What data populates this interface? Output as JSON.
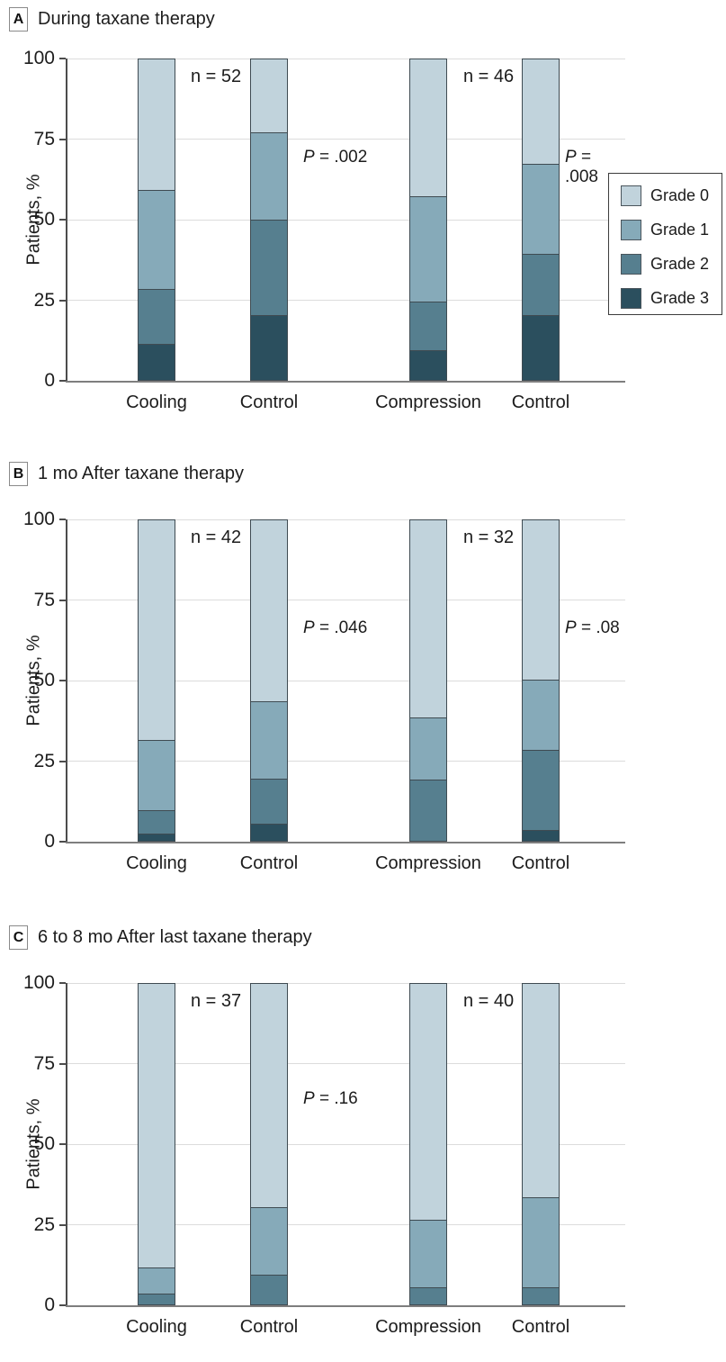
{
  "chart_data": [
    {
      "type": "bar",
      "stacked": true,
      "panel_letter": "A",
      "title": "During taxane therapy",
      "ylabel": "Patients, %",
      "ylim": [
        0,
        100
      ],
      "yticks": [
        0,
        25,
        50,
        75,
        100
      ],
      "grid": "horizontal",
      "legend": {
        "visible": true,
        "position": "right"
      },
      "categories": [
        "Cooling",
        "Control",
        "Compression",
        "Control"
      ],
      "series": [
        {
          "name": "Grade 0",
          "color": "#c1d3dc",
          "values": [
            41,
            23,
            43,
            33
          ]
        },
        {
          "name": "Grade 1",
          "color": "#86aab9",
          "values": [
            31,
            27,
            33,
            28
          ]
        },
        {
          "name": "Grade 2",
          "color": "#567f8f",
          "values": [
            17,
            30,
            15,
            19
          ]
        },
        {
          "name": "Grade 3",
          "color": "#2b4f5e",
          "values": [
            11,
            20,
            9,
            20
          ]
        }
      ],
      "annotations": {
        "n_left": "n = 52",
        "n_right": "n = 46",
        "p_left": "P = .002",
        "p_right": "P = .008"
      }
    },
    {
      "type": "bar",
      "stacked": true,
      "panel_letter": "B",
      "title": "1 mo After taxane therapy",
      "ylabel": "Patients, %",
      "ylim": [
        0,
        100
      ],
      "yticks": [
        0,
        25,
        50,
        75,
        100
      ],
      "grid": "horizontal",
      "legend": {
        "visible": false
      },
      "categories": [
        "Cooling",
        "Control",
        "Compression",
        "Control"
      ],
      "series": [
        {
          "name": "Grade 0",
          "color": "#c1d3dc",
          "values": [
            69,
            57,
            62,
            50
          ]
        },
        {
          "name": "Grade 1",
          "color": "#86aab9",
          "values": [
            22,
            24,
            19,
            22
          ]
        },
        {
          "name": "Grade 2",
          "color": "#567f8f",
          "values": [
            7,
            14,
            19,
            25
          ]
        },
        {
          "name": "Grade 3",
          "color": "#2b4f5e",
          "values": [
            2,
            5,
            0,
            3
          ]
        }
      ],
      "annotations": {
        "n_left": "n = 42",
        "n_right": "n = 32",
        "p_left": "P = .046",
        "p_right": "P = .08"
      }
    },
    {
      "type": "bar",
      "stacked": true,
      "panel_letter": "C",
      "title": "6 to 8 mo After last taxane therapy",
      "ylabel": "Patients, %",
      "ylim": [
        0,
        100
      ],
      "yticks": [
        0,
        25,
        50,
        75,
        100
      ],
      "grid": "horizontal",
      "legend": {
        "visible": false
      },
      "categories": [
        "Cooling",
        "Control",
        "Compression",
        "Control"
      ],
      "series": [
        {
          "name": "Grade 0",
          "color": "#c1d3dc",
          "values": [
            89,
            70,
            74,
            67
          ]
        },
        {
          "name": "Grade 1",
          "color": "#86aab9",
          "values": [
            8,
            21,
            21,
            28
          ]
        },
        {
          "name": "Grade 2",
          "color": "#567f8f",
          "values": [
            3,
            9,
            5,
            5
          ]
        },
        {
          "name": "Grade 3",
          "color": "#2b4f5e",
          "values": [
            0,
            0,
            0,
            0
          ]
        }
      ],
      "annotations": {
        "n_left": "n = 37",
        "n_right": "n = 40",
        "p_left": "P = .16",
        "p_right": ""
      }
    }
  ]
}
